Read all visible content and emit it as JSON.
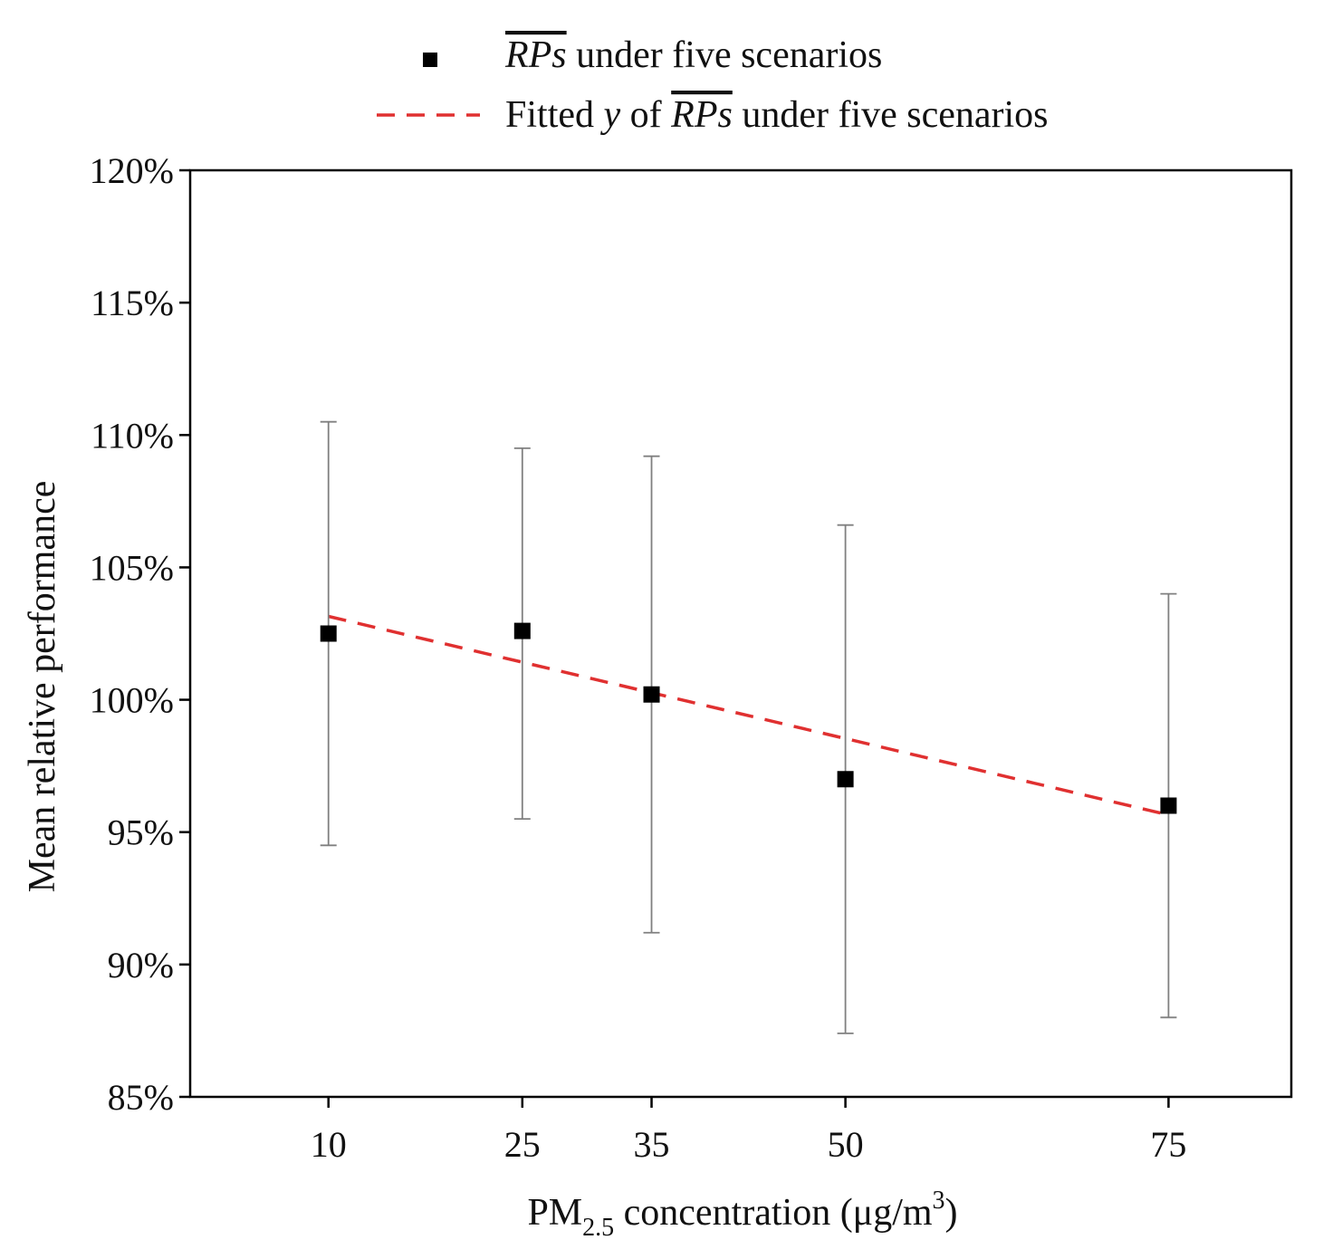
{
  "chart_data": {
    "type": "scatter",
    "title": "",
    "x": [
      10,
      25,
      35,
      50,
      75
    ],
    "x_tick_labels": [
      "10",
      "25",
      "35",
      "50",
      "75"
    ],
    "xlim": [
      -0.7,
      84.5
    ],
    "ylim": [
      85,
      120
    ],
    "y_ticks": [
      85,
      90,
      95,
      100,
      105,
      110,
      115,
      120
    ],
    "y_tick_suffix": "%",
    "ylabel": "Mean relative performance",
    "xlabel": {
      "prefix": "PM",
      "subscript": "2.5",
      "middle": " concentration (μg/m",
      "superscript": "3",
      "suffix": ")"
    },
    "series": [
      {
        "name": "RPs under five scenarios",
        "marker": "square",
        "color": "#000000",
        "values": [
          102.5,
          102.6,
          100.2,
          97.0,
          96.0
        ],
        "error_high": [
          110.5,
          109.5,
          109.2,
          106.6,
          104.0
        ],
        "error_low": [
          94.5,
          95.5,
          91.2,
          87.4,
          88.0
        ]
      },
      {
        "name": "Fitted y of RPs under five scenarios",
        "style": "dashed",
        "color": "#e03030",
        "x": [
          10,
          75
        ],
        "values": [
          103.15,
          95.65
        ]
      }
    ],
    "legend": {
      "position": "top-center",
      "entries": [
        {
          "prefix": "",
          "italic_var": "",
          "overbar": "RPs",
          "suffix": " under five scenarios"
        },
        {
          "prefix": "Fitted ",
          "italic_var": "y",
          "overbar": "RPs",
          "suffix": " under five scenarios",
          "of_word": " of "
        }
      ]
    },
    "error_bar_color": "#808080",
    "axis_color": "#000000"
  }
}
